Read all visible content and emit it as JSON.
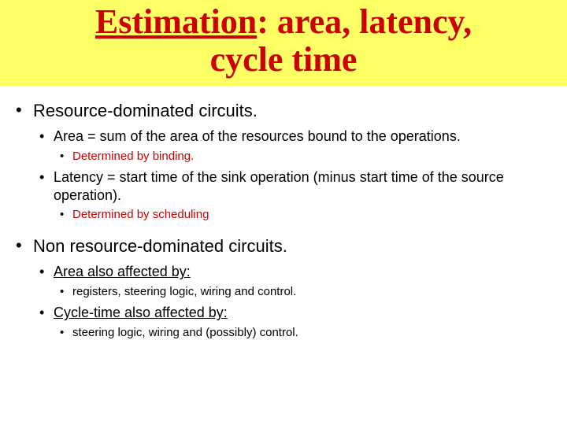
{
  "colors": {
    "title_bg": "#ffff66",
    "title_color": "#cc0000",
    "body_bg": "#ffffff",
    "text_color": "#000000",
    "accent_red": "#cc0000"
  },
  "typography": {
    "title_family": "Times New Roman",
    "title_size_pt": 33,
    "title_weight": "bold",
    "body_family": "Verdana",
    "level1_size_pt": 17,
    "level2_size_pt": 14,
    "level3_size_pt": 11
  },
  "title": {
    "underlined": "Estimation",
    "rest_line1": ": area, latency,",
    "line2": "cycle time"
  },
  "b1": {
    "text": "Resource-dominated circuits.",
    "sub1": {
      "text": "Area = sum of the area of the resources bound to the operations.",
      "detail": "Determined by binding."
    },
    "sub2": {
      "text": " Latency = start time of the sink operation (minus start time of the source operation).",
      "detail": "Determined by scheduling"
    }
  },
  "b2": {
    "text": "Non resource-dominated circuits.",
    "sub1": {
      "text": "Area also affected by:",
      "detail": "registers, steering logic, wiring and control."
    },
    "sub2": {
      "text": "Cycle-time also affected by:",
      "detail": "steering logic, wiring and (possibly) control."
    }
  },
  "bullets": {
    "l1": "•",
    "l2": "•",
    "l3": "•"
  }
}
